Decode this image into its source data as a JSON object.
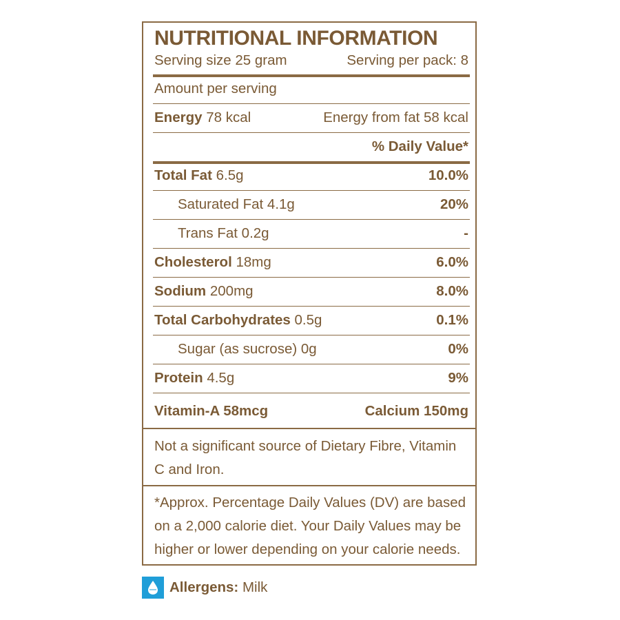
{
  "title": "NUTRITIONAL INFORMATION",
  "serving": {
    "size": "Serving size 25 gram",
    "per_pack": "Serving per pack: 8"
  },
  "amount_per_serving": "Amount per serving",
  "energy": {
    "label": "Energy",
    "value": "78 kcal",
    "from_fat": "Energy from fat 58 kcal"
  },
  "daily_value_header": "% Daily Value*",
  "nutrients": [
    {
      "label": "Total Fat",
      "amount": "6.5g",
      "dv": "10.0%",
      "indent": false
    },
    {
      "label": "Saturated Fat",
      "amount": "4.1g",
      "dv": "20%",
      "indent": true
    },
    {
      "label": "Trans Fat",
      "amount": "0.2g",
      "dv": "-",
      "indent": true
    },
    {
      "label": "Cholesterol",
      "amount": "18mg",
      "dv": "6.0%",
      "indent": false
    },
    {
      "label": "Sodium",
      "amount": "200mg",
      "dv": "8.0%",
      "indent": false
    },
    {
      "label": "Total Carbohydrates",
      "amount": "0.5g",
      "dv": "0.1%",
      "indent": false
    },
    {
      "label": "Sugar (as sucrose)",
      "amount": "0g",
      "dv": "0%",
      "indent": true
    },
    {
      "label": "Protein",
      "amount": "4.5g",
      "dv": "9%",
      "indent": false
    }
  ],
  "vitamins": {
    "left": "Vitamin-A 58mcg",
    "right": "Calcium 150mg"
  },
  "note_not_significant": "Not a significant source of Dietary Fibre, Vitamin C and Iron.",
  "note_dv": "*Approx. Percentage Daily Values (DV) are based on a 2,000 calorie diet. Your Daily Values may be higher or lower depending on your calorie needs.",
  "allergens": {
    "label": "Allergens:",
    "value": "Milk",
    "icon": "milk-drop-icon",
    "icon_color": "#1f9ed8"
  },
  "colors": {
    "text": "#7a5a35",
    "rule": "#8a6a44"
  }
}
